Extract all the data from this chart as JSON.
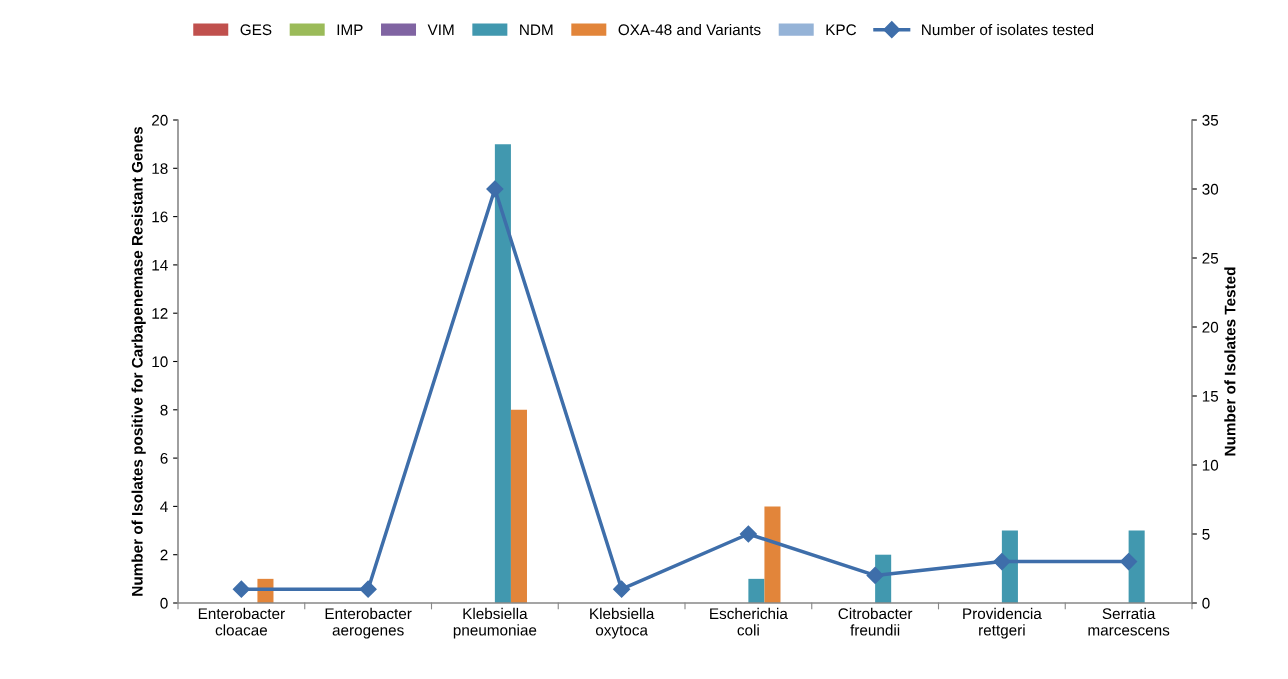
{
  "chart_data": {
    "type": "bar",
    "ylabel": "Number of Isolates positive for Carbapenemase Resistant Genes",
    "y2label": "Number of Isolates Tested",
    "categories": [
      "Enterobacter\ncloacae",
      "Enterobacter\naerogenes",
      "Klebsiella\npneumoniae",
      "Klebsiella\noxytoca",
      "Escherichia\ncoli",
      "Citrobacter\nfreundii",
      "Providencia\nrettgeri",
      "Serratia\nmarcescens"
    ],
    "series": [
      {
        "name": "GES",
        "color": "#c0504d",
        "values": [
          0,
          0,
          0,
          0,
          0,
          0,
          0,
          0
        ]
      },
      {
        "name": "IMP",
        "color": "#9bbb59",
        "values": [
          0,
          0,
          0,
          0,
          0,
          0,
          0,
          0
        ]
      },
      {
        "name": "VIM",
        "color": "#8064a2",
        "values": [
          0,
          0,
          0,
          0,
          0,
          0,
          0,
          0
        ]
      },
      {
        "name": "NDM",
        "color": "#4198af",
        "values": [
          0,
          0,
          19,
          0,
          1,
          2,
          3,
          3
        ]
      },
      {
        "name": "OXA-48 and Variants",
        "color": "#e2853a",
        "values": [
          1,
          0,
          8,
          0,
          4,
          0,
          0,
          0
        ]
      },
      {
        "name": "KPC",
        "color": "#95b3d7",
        "values": [
          0,
          0,
          0,
          0,
          0,
          0,
          0,
          0
        ]
      },
      {
        "name": "Number of isolates tested",
        "type": "line",
        "axis": "y2",
        "color": "#3e6eaa",
        "marker": "diamond",
        "values": [
          1,
          1,
          30,
          1,
          5,
          2,
          3,
          3
        ]
      }
    ],
    "ylim": [
      0,
      20
    ],
    "yticks": [
      0,
      2,
      4,
      6,
      8,
      10,
      12,
      14,
      16,
      18,
      20
    ],
    "y2lim": [
      0,
      35
    ],
    "y2ticks": [
      0,
      5,
      10,
      15,
      20,
      25,
      30,
      35
    ],
    "grid": false,
    "legend": "top"
  }
}
